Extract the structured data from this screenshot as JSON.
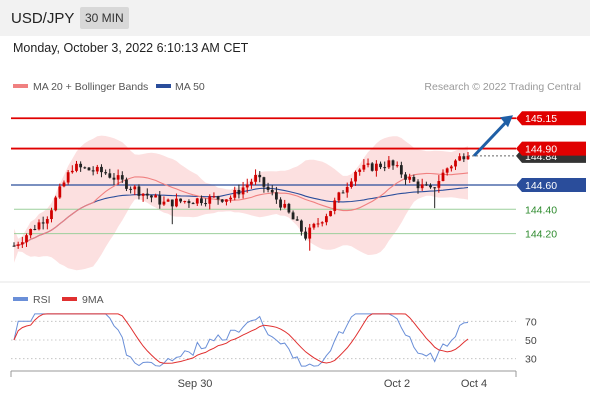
{
  "header": {
    "symbol": "USD/JPY",
    "timeframe": "30 MIN"
  },
  "timestamp": "Monday, October 3, 2022 6:10:13 AM CET",
  "copyright": "Research © 2022 Trading Central",
  "colors": {
    "bull": "#d00000",
    "bear": "#222222",
    "ma20": "#f08080",
    "ma50": "#2a4d9b",
    "bollinger": "#fbd5d5",
    "resistance": "#e00000",
    "support": "#2e8b2e",
    "pivot": "#2a4d9b",
    "arrow": "#1f5fa6",
    "rsi": "#6a8fd8",
    "rsi_ma": "#e03030"
  },
  "chart_data": [
    {
      "type": "candlestick",
      "legend": [
        {
          "name": "MA 20 + Bollinger Bands",
          "color": "#f08080"
        },
        {
          "name": "MA 50",
          "color": "#2a4d9b"
        }
      ],
      "ylim": [
        143.9,
        145.3
      ],
      "x_ticks": [
        "Sep 30",
        "Oct 2",
        "Oct 4"
      ],
      "price_label": "144.84",
      "levels": [
        {
          "value": 145.15,
          "label": "145.15",
          "role": "resistance",
          "style": "line"
        },
        {
          "value": 144.9,
          "label": "144.90",
          "role": "resistance",
          "style": "line"
        },
        {
          "value": 144.6,
          "label": "144.60",
          "role": "pivot",
          "style": "line"
        },
        {
          "value": 144.4,
          "label": "144.40",
          "role": "support",
          "style": "text"
        },
        {
          "value": 144.2,
          "label": "144.20",
          "role": "support",
          "style": "text"
        }
      ],
      "forecast_arrow": {
        "from": 144.84,
        "to": 145.15,
        "direction": "up"
      }
    },
    {
      "type": "line",
      "series": [
        {
          "name": "RSI",
          "color": "#6a8fd8"
        },
        {
          "name": "9MA",
          "color": "#e03030"
        }
      ],
      "ylim": [
        20,
        80
      ],
      "y_ticks": [
        "70",
        "50",
        "30"
      ]
    }
  ]
}
